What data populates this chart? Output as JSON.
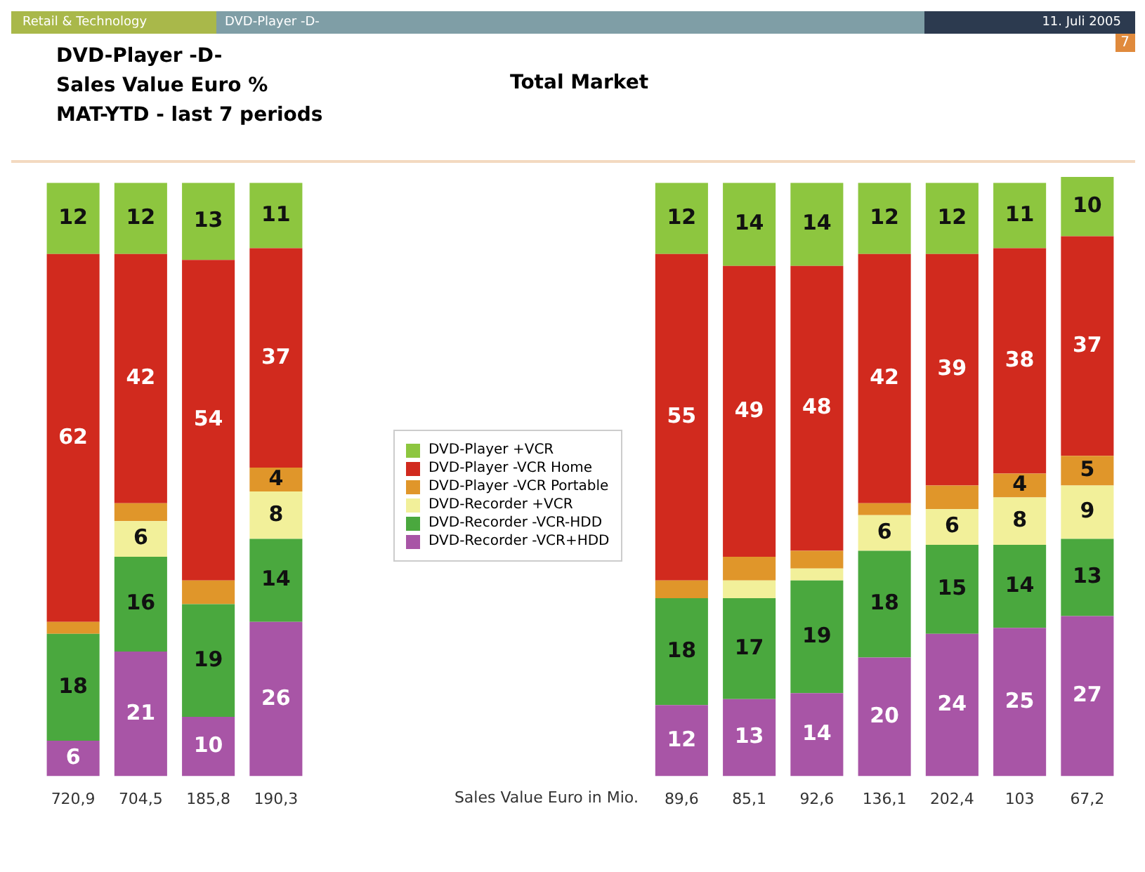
{
  "chart_data": {
    "type": "bar",
    "title": "DVD-Player -D-",
    "subtitle": "Sales Value Euro %\nMAT-YTD - last 7 periods",
    "annotations": [
      "Retail & Technology",
      "DVD-Player -D-",
      "11. Juli 2005",
      "Total Market",
      "7",
      "Sales Value Euro in Mio."
    ],
    "categories": [
      "720,9",
      "704,5",
      "185,8",
      "190,3",
      null,
      null,
      null,
      null,
      null,
      "89,6",
      "85,1",
      "92,6",
      "136,1",
      "202,4",
      "103",
      "67,2"
    ],
    "stacked": true,
    "legend": "center",
    "grid": false,
    "series": [
      {
        "name": "DVD-Recorder -VCR+HDD",
        "color": "#a855a6",
        "values": [
          6,
          21,
          10,
          26,
          null,
          null,
          null,
          null,
          null,
          12,
          13,
          14,
          20,
          24,
          25,
          27
        ],
        "value_labels": [
          "6",
          "21",
          "10",
          "26",
          null,
          null,
          null,
          null,
          null,
          "12",
          "13",
          "14",
          "20",
          "24",
          "25",
          "27"
        ]
      },
      {
        "name": "DVD-Recorder -VCR-HDD",
        "color": "#4aa83e",
        "values": [
          18,
          16,
          19,
          14,
          null,
          null,
          null,
          null,
          null,
          18,
          17,
          19,
          18,
          15,
          14,
          13
        ],
        "value_labels": [
          "18",
          "16",
          "19",
          "14",
          null,
          null,
          null,
          null,
          null,
          "18",
          "17",
          "19",
          "18",
          "15",
          "14",
          "13"
        ]
      },
      {
        "name": "DVD-Recorder +VCR",
        "color": "#f2f09a",
        "values": [
          0,
          6,
          0,
          8,
          null,
          null,
          null,
          null,
          null,
          0,
          3,
          2,
          6,
          6,
          8,
          9
        ],
        "value_labels": [
          null,
          "6",
          null,
          "8",
          null,
          null,
          null,
          null,
          null,
          null,
          null,
          null,
          "6",
          "6",
          "8",
          "9"
        ]
      },
      {
        "name": "DVD-Player -VCR Portable",
        "color": "#e0962a",
        "values": [
          2,
          3,
          4,
          4,
          null,
          null,
          null,
          null,
          null,
          3,
          4,
          3,
          2,
          4,
          4,
          5
        ],
        "value_labels": [
          null,
          null,
          null,
          "4",
          null,
          null,
          null,
          null,
          null,
          null,
          null,
          null,
          null,
          null,
          "4",
          "5"
        ]
      },
      {
        "name": "DVD-Player -VCR Home",
        "color": "#d12a1e",
        "values": [
          62,
          42,
          54,
          37,
          null,
          null,
          null,
          null,
          null,
          55,
          49,
          48,
          42,
          39,
          38,
          37
        ],
        "value_labels": [
          "62",
          "42",
          "54",
          "37",
          null,
          null,
          null,
          null,
          null,
          "55",
          "49",
          "48",
          "42",
          "39",
          "38",
          "37"
        ]
      },
      {
        "name": "DVD-Player +VCR",
        "color": "#8dc63f",
        "values": [
          12,
          12,
          13,
          11,
          null,
          null,
          null,
          null,
          null,
          12,
          14,
          14,
          12,
          12,
          11,
          10
        ],
        "value_labels": [
          "12",
          "12",
          "13",
          "11",
          null,
          null,
          null,
          null,
          null,
          "12",
          "14",
          "14",
          "12",
          "12",
          "11",
          "10"
        ]
      }
    ]
  }
}
